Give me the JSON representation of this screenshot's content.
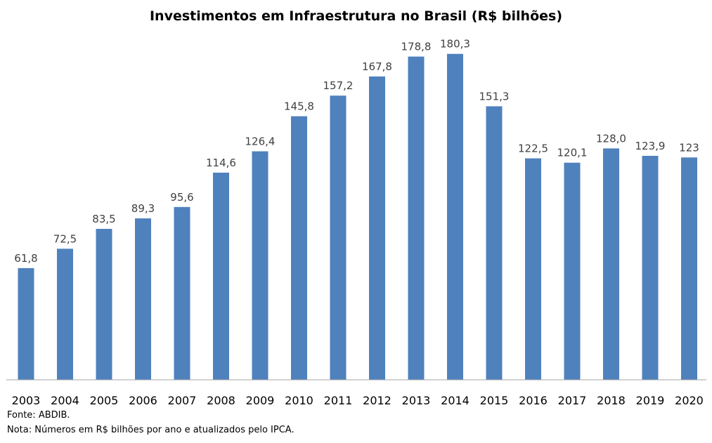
{
  "chart_data": {
    "type": "bar",
    "title": "Investimentos em Infraestrutura no Brasil (R$ bilhões)",
    "xlabel": "",
    "ylabel": "",
    "ylim": [
      0,
      200
    ],
    "grid": false,
    "legend": "none",
    "bar_color": "#4F81BD",
    "categories": [
      "2003",
      "2004",
      "2005",
      "2006",
      "2007",
      "2008",
      "2009",
      "2010",
      "2011",
      "2012",
      "2013",
      "2014",
      "2015",
      "2016",
      "2017",
      "2018",
      "2019",
      "2020"
    ],
    "values": [
      61.8,
      72.5,
      83.5,
      89.3,
      95.6,
      114.6,
      126.4,
      145.8,
      157.2,
      167.8,
      178.8,
      180.3,
      151.3,
      122.5,
      120.1,
      128.0,
      123.9,
      123
    ],
    "data_labels": [
      "61,8",
      "72,5",
      "83,5",
      "89,3",
      "95,6",
      "114,6",
      "126,4",
      "145,8",
      "157,2",
      "167,8",
      "178,8",
      "180,3",
      "151,3",
      "122,5",
      "120,1",
      "128,0",
      "123,9",
      "123"
    ]
  },
  "footer": {
    "source": "Fonte: ABDIB.",
    "note": "Nota: Números em R$ bilhões por ano e atualizados pelo IPCA."
  }
}
